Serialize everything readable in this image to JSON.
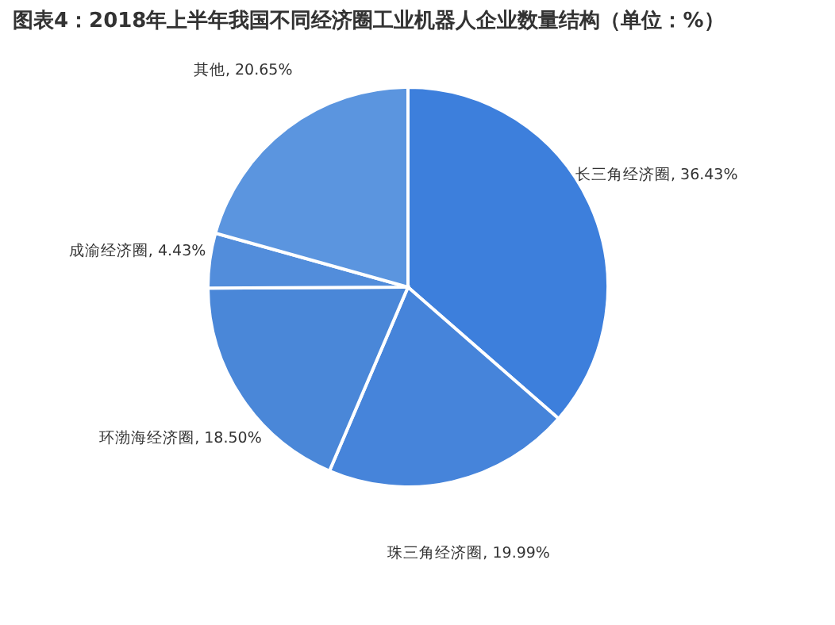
{
  "chart_data": {
    "type": "pie",
    "title": "图表4：2018年上半年我国不同经济圈工业机器人企业数量结构（单位：%）",
    "categories": [
      "长三角经济圈",
      "珠三角经济圈",
      "环渤海经济圈",
      "成渝经济圈",
      "其他"
    ],
    "values": [
      36.43,
      19.99,
      18.5,
      4.43,
      20.65
    ],
    "value_labels": [
      "36.43%",
      "19.99%",
      "18.50%",
      "4.43%",
      "20.65%"
    ],
    "colors": [
      "#3d7fdc",
      "#4684da",
      "#4a87d8",
      "#528ddb",
      "#5b95df"
    ],
    "legend": false
  }
}
